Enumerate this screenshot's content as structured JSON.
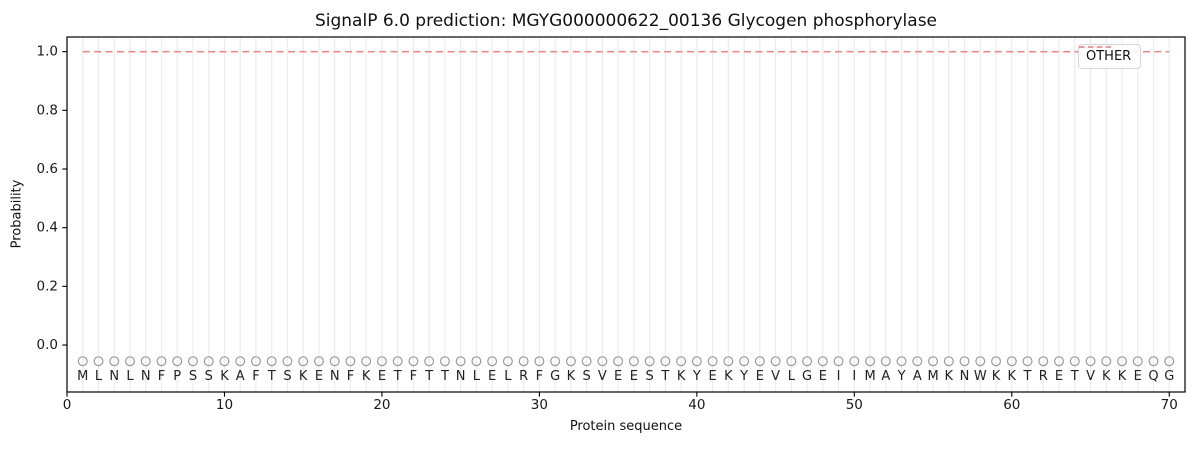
{
  "chart_data": {
    "type": "line",
    "title": "SignalP 6.0 prediction: MGYG000000622_00136 Glycogen phosphorylase",
    "xlabel": "Protein sequence",
    "ylabel": "Probability",
    "xlim": [
      0,
      71
    ],
    "ylim": [
      -0.16,
      1.05
    ],
    "x_ticks": [
      0,
      10,
      20,
      30,
      40,
      50,
      60,
      70
    ],
    "y_ticks": [
      0.0,
      0.2,
      0.4,
      0.6,
      0.8,
      1.0
    ],
    "grid": {
      "vertical_per_residue": true,
      "horizontal": false,
      "color": "#ececec"
    },
    "legend": {
      "position": "upper right",
      "entries": [
        {
          "label": "OTHER",
          "color": "#ee8888",
          "linestyle": "dashed"
        }
      ]
    },
    "sequence": "MLNLNFPSSKAFTSKENFKETFTTNLELRFGKSVEESTKYEKYEVLGEIIMAYAMKNWKKTRETVKKEQG",
    "series": [
      {
        "name": "OTHER",
        "color": "#ee8888",
        "linestyle": "dashed",
        "x": [
          1,
          2,
          3,
          4,
          5,
          6,
          7,
          8,
          9,
          10,
          11,
          12,
          13,
          14,
          15,
          16,
          17,
          18,
          19,
          20,
          21,
          22,
          23,
          24,
          25,
          26,
          27,
          28,
          29,
          30,
          31,
          32,
          33,
          34,
          35,
          36,
          37,
          38,
          39,
          40,
          41,
          42,
          43,
          44,
          45,
          46,
          47,
          48,
          49,
          50,
          51,
          52,
          53,
          54,
          55,
          56,
          57,
          58,
          59,
          60,
          61,
          62,
          63,
          64,
          65,
          66,
          67,
          68,
          69,
          70
        ],
        "values": [
          1.0,
          1.0,
          1.0,
          1.0,
          1.0,
          1.0,
          1.0,
          1.0,
          1.0,
          1.0,
          1.0,
          1.0,
          1.0,
          1.0,
          1.0,
          1.0,
          1.0,
          1.0,
          1.0,
          1.0,
          1.0,
          1.0,
          1.0,
          1.0,
          1.0,
          1.0,
          1.0,
          1.0,
          1.0,
          1.0,
          1.0,
          1.0,
          1.0,
          1.0,
          1.0,
          1.0,
          1.0,
          1.0,
          1.0,
          1.0,
          1.0,
          1.0,
          1.0,
          1.0,
          1.0,
          1.0,
          1.0,
          1.0,
          1.0,
          1.0,
          1.0,
          1.0,
          1.0,
          1.0,
          1.0,
          1.0,
          1.0,
          1.0,
          1.0,
          1.0,
          1.0,
          1.0,
          1.0,
          1.0,
          1.0,
          1.0,
          1.0,
          1.0,
          1.0,
          1.0
        ]
      }
    ],
    "residue_markers": {
      "shape": "open-circle",
      "color": "#9a9a9a",
      "y_value": -0.055
    },
    "colors": {
      "spine": "#000000",
      "tick_text": "#1a1a1a",
      "residue_text": "#222222"
    }
  }
}
